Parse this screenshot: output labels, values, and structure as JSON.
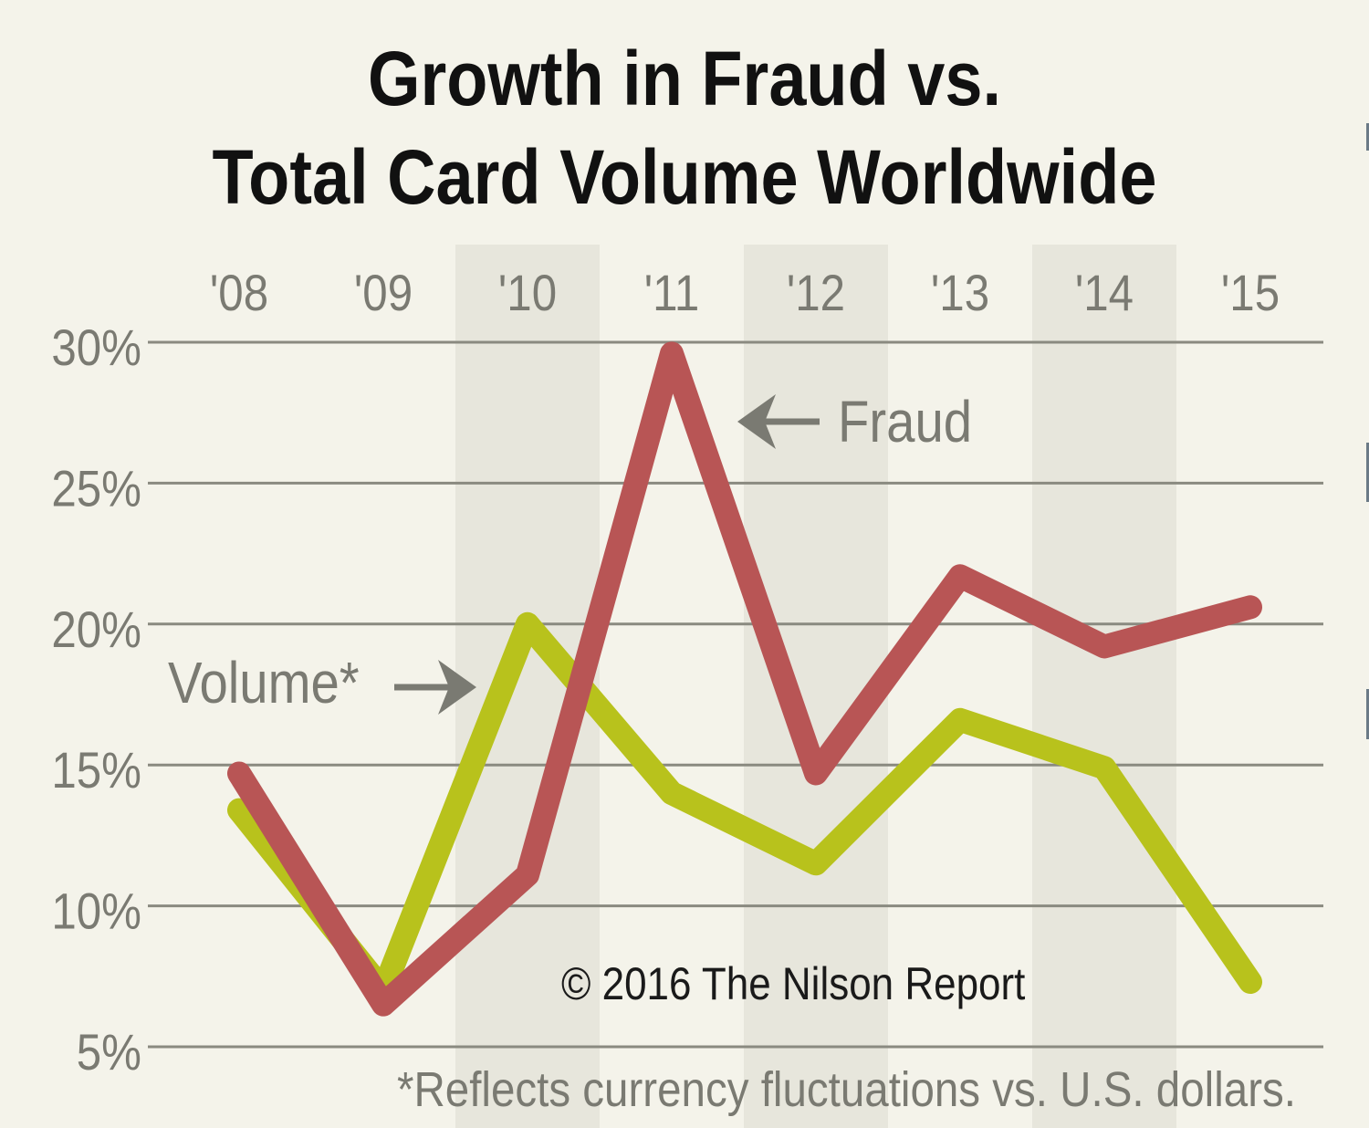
{
  "title_line1": "Growth in Fraud vs.",
  "title_line2": "Total Card Volume Worldwide",
  "copyright": "© 2016 The Nilson Report",
  "footnote": "*Reflects currency fluctuations vs. U.S. dollars.",
  "labels": {
    "fraud": "Fraud",
    "volume": "Volume*"
  },
  "colors": {
    "fraud": "#b85555",
    "volume": "#b8c21c",
    "grid": "#8a8a80",
    "band": "#e7e6dc",
    "axis_text": "#7a7a72",
    "background": "#f4f3ea"
  },
  "chart_data": {
    "type": "line",
    "title": "Growth in Fraud vs. Total Card Volume Worldwide",
    "x": [
      "'08",
      "'09",
      "'10",
      "'11",
      "'12",
      "'13",
      "'14",
      "'15"
    ],
    "series": [
      {
        "name": "Fraud",
        "values": [
          14.7,
          6.5,
          11.1,
          29.6,
          14.7,
          21.7,
          19.2,
          20.6
        ]
      },
      {
        "name": "Volume*",
        "values": [
          13.4,
          7.0,
          20.0,
          14.0,
          11.5,
          16.6,
          14.9,
          7.3
        ]
      }
    ],
    "yticks": [
      "5%",
      "10%",
      "15%",
      "20%",
      "25%",
      "30%"
    ],
    "ylim": [
      5,
      30
    ],
    "xlabel": "",
    "ylabel": "",
    "grid": true,
    "annotations": [
      "© 2016 The Nilson Report",
      "*Reflects currency fluctuations vs. U.S. dollars."
    ]
  }
}
